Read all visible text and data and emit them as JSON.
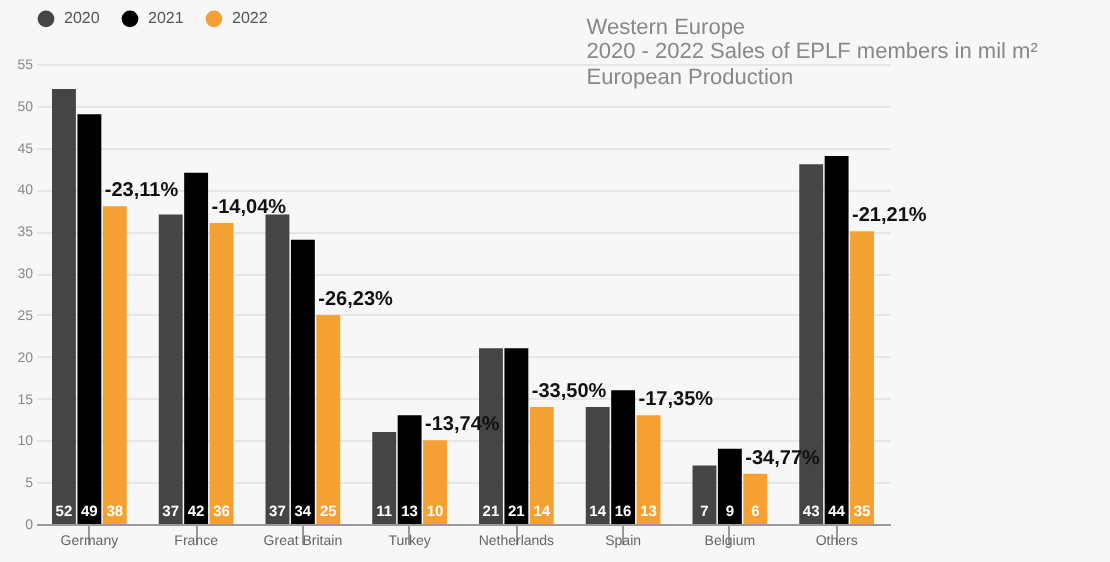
{
  "chart_data": {
    "type": "bar",
    "title": "Western Europe",
    "subtitle": "2020 - 2022 Sales of EPLF members in mil m²\nEuropean Production",
    "categories": [
      "Germany",
      "France",
      "Great Britain",
      "Turkey",
      "Netherlands",
      "Spain",
      "Belgium",
      "Others"
    ],
    "series": [
      {
        "name": "2020",
        "color": "#454545",
        "values": [
          52,
          37,
          37,
          11,
          21,
          14,
          7,
          43
        ]
      },
      {
        "name": "2021",
        "color": "#000000",
        "values": [
          49,
          42,
          34,
          13,
          21,
          16,
          9,
          44
        ]
      },
      {
        "name": "2022",
        "color": "#f5a032",
        "values": [
          38,
          36,
          25,
          10,
          14,
          13,
          6,
          35
        ]
      }
    ],
    "ylim": [
      0,
      55
    ],
    "yticks": [
      0,
      5,
      10,
      15,
      20,
      25,
      30,
      35,
      40,
      45,
      50,
      55
    ],
    "grid": "y",
    "legend": "top",
    "data_labels": true,
    "annotations": [
      "-23,11%",
      "-14,04%",
      "-26,23%",
      "-13,74%",
      "-33,50%",
      "-17,35%",
      "-34,77%",
      "-21,21%"
    ]
  }
}
